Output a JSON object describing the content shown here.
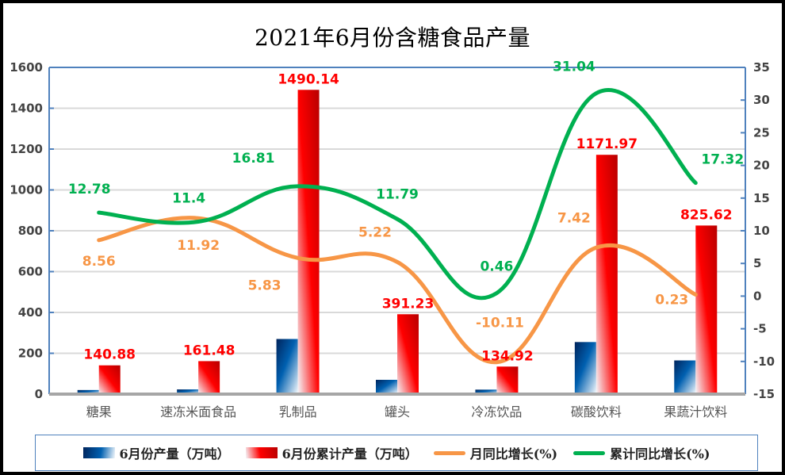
{
  "chart_data": {
    "type": "bar",
    "title": "2021年6月份含糖食品产量",
    "categories": [
      "糖果",
      "速冻米面食品",
      "乳制品",
      "罐头",
      "冷冻饮品",
      "碳酸饮料",
      "果蔬汁饮料"
    ],
    "y_left": {
      "ylim": [
        0,
        1600
      ],
      "ticks": [
        0,
        200,
        400,
        600,
        800,
        1000,
        1200,
        1400,
        1600
      ]
    },
    "y_right": {
      "ylim": [
        -15,
        35
      ],
      "ticks": [
        -15,
        -10,
        -5,
        0,
        5,
        10,
        15,
        20,
        25,
        30,
        35
      ]
    },
    "grid": true,
    "legend_position": "bottom",
    "series": [
      {
        "name": "6月份产量（万吨）",
        "type": "bar",
        "axis": "left",
        "color": "#003f8a",
        "values": [
          20,
          23,
          270,
          70,
          22,
          255,
          165
        ],
        "labels_shown": false
      },
      {
        "name": "6月份累计产量（万吨）",
        "type": "bar",
        "axis": "left",
        "color": "#e00000",
        "values": [
          140.88,
          161.48,
          1490.14,
          391.23,
          134.92,
          1171.97,
          825.62
        ],
        "labels_shown": true
      },
      {
        "name": "月同比增长(%)",
        "type": "line",
        "axis": "right",
        "color": "#f79646",
        "values": [
          8.56,
          11.92,
          5.83,
          5.22,
          -10.11,
          7.42,
          0.23
        ],
        "labels_shown": true
      },
      {
        "name": "累计同比增长(%)",
        "type": "line",
        "axis": "right",
        "color": "#00b050",
        "values": [
          12.78,
          11.4,
          16.81,
          11.79,
          0.46,
          31.04,
          17.32
        ],
        "labels_shown": true
      }
    ],
    "data_label_color_bar": "#ff0000"
  }
}
